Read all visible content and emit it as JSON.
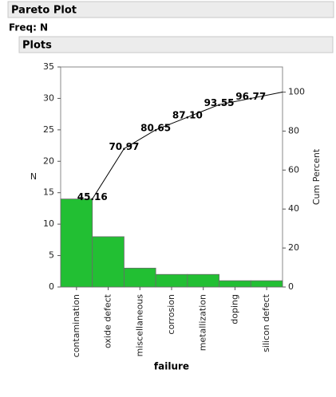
{
  "header": {
    "title": "Pareto Plot",
    "freq": "Freq: N",
    "section": "Plots"
  },
  "chart_data": {
    "type": "pareto",
    "categories": [
      "contamination",
      "oxide defect",
      "miscellaneous",
      "corrosion",
      "metallization",
      "doping",
      "silicon defect"
    ],
    "x_label": "failure",
    "series": [
      {
        "name": "N",
        "color": "#22bf33",
        "values": [
          14,
          8,
          3,
          2,
          2,
          1,
          1
        ]
      },
      {
        "name": "Cum Percent",
        "axis": "y2",
        "color": "#000000",
        "values": [
          45.16,
          70.97,
          80.65,
          87.1,
          93.55,
          96.77,
          100
        ],
        "value_labels": [
          "45.16",
          "70.97",
          "80.65",
          "87.10",
          "93.55",
          "96.77",
          null
        ]
      }
    ],
    "ylim": [
      0,
      35
    ],
    "yticks": [
      0,
      5,
      10,
      15,
      20,
      25,
      30,
      35
    ],
    "y2lim": [
      0,
      112.9
    ],
    "y2ticks": [
      0,
      20,
      40,
      60,
      80,
      100
    ]
  }
}
